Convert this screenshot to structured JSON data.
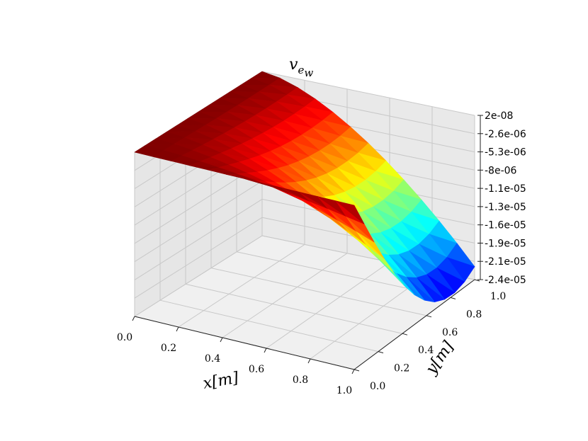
{
  "chart_data": {
    "type": "surface3d",
    "title": "v",
    "title_sub": "e",
    "title_subsub": "w",
    "xlabel": "x[m]",
    "ylabel": "y[m]",
    "x_ticks": [
      "0.0",
      "0.2",
      "0.4",
      "0.6",
      "0.8",
      "1.0"
    ],
    "y_ticks": [
      "0.0",
      "0.2",
      "0.4",
      "0.6",
      "0.8",
      "1.0"
    ],
    "z_ticks": [
      "2e-08",
      "-2.6e-06",
      "-5.3e-06",
      "-8e-06",
      "-1.1e-05",
      "-1.3e-05",
      "-1.6e-05",
      "-1.9e-05",
      "-2.1e-05",
      "-2.4e-05"
    ],
    "xlim": [
      0,
      1
    ],
    "ylim": [
      0,
      1
    ],
    "zlim": [
      -2.4e-05,
      2e-08
    ],
    "colormap": "jet",
    "grid": true
  }
}
